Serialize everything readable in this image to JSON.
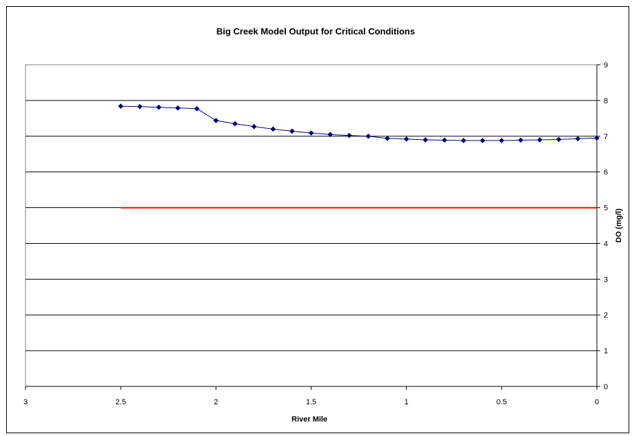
{
  "chart_data": {
    "type": "line",
    "title": "Big Creek Model Output for Critical Conditions",
    "xlabel": "River Mile",
    "ylabel": "DO (mg/l)",
    "xlim": [
      3,
      0
    ],
    "x_reversed": true,
    "ylim": [
      0,
      9
    ],
    "y_axis_position": "right",
    "grid": "horizontal",
    "legend": "none",
    "x_ticks": [
      "3",
      "2.5",
      "2",
      "1.5",
      "1",
      "0.5",
      "0"
    ],
    "y_ticks": [
      "0",
      "1",
      "2",
      "3",
      "4",
      "5",
      "6",
      "7",
      "8",
      "9"
    ],
    "series": [
      {
        "color": "#000080",
        "marker": "diamond",
        "x": [
          2.5,
          2.4,
          2.3,
          2.2,
          2.1,
          2.0,
          1.9,
          1.8,
          1.7,
          1.6,
          1.5,
          1.4,
          1.3,
          1.2,
          1.1,
          1.0,
          0.9,
          0.8,
          0.7,
          0.6,
          0.5,
          0.4,
          0.3,
          0.2,
          0.1,
          0.0
        ],
        "y": [
          7.84,
          7.83,
          7.81,
          7.79,
          7.77,
          7.44,
          7.35,
          7.27,
          7.2,
          7.14,
          7.09,
          7.05,
          7.02,
          7.0,
          6.94,
          6.92,
          6.9,
          6.89,
          6.88,
          6.88,
          6.88,
          6.89,
          6.9,
          6.91,
          6.93,
          6.95
        ]
      },
      {
        "color": "#ff0000",
        "marker": "none",
        "x": [
          2.5,
          0.0
        ],
        "y": [
          5,
          5
        ]
      }
    ]
  }
}
